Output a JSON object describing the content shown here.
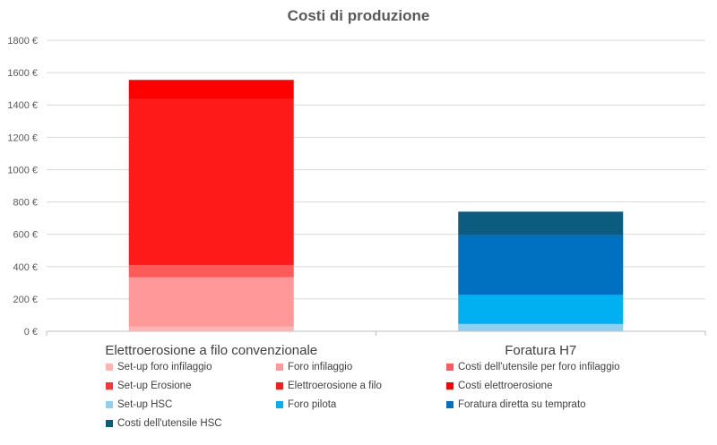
{
  "chart_data": {
    "type": "stacked-bar",
    "title": "Costi di produzione",
    "xlabel": "",
    "ylabel": "",
    "ylim": [
      0,
      1800
    ],
    "y_ticks": [
      "0 €",
      "200 €",
      "400 €",
      "600 €",
      "800 €",
      "1000 €",
      "1200 €",
      "1400 €",
      "1600 €",
      "1800 €"
    ],
    "y_tick_values": [
      0,
      200,
      400,
      600,
      800,
      1000,
      1200,
      1400,
      1600,
      1800
    ],
    "grid": true,
    "legend_position": "bottom",
    "categories": [
      "Elettroerosione a filo convenzionale",
      "Foratura H7"
    ],
    "series": [
      {
        "name": "Set-up foro infilaggio",
        "color": "#FFB3B3",
        "values": [
          30,
          0
        ]
      },
      {
        "name": "Foro infilaggio",
        "color": "#FF9999",
        "values": [
          305,
          0
        ]
      },
      {
        "name": "Costi dell'utensile per foro infilaggio",
        "color": "#FF5A5A",
        "values": [
          75,
          0
        ]
      },
      {
        "name": "Set-up Erosione",
        "color": "#FF3333",
        "values": [
          0,
          0
        ]
      },
      {
        "name": "Elettroerosione a filo",
        "color": "#FF1A1A",
        "values": [
          1030,
          0
        ]
      },
      {
        "name": "Costi elettroerosione",
        "color": "#FF0000",
        "values": [
          115,
          0
        ]
      },
      {
        "name": "Set-up HSC",
        "color": "#8FCFEF",
        "values": [
          0,
          45
        ]
      },
      {
        "name": "Foro pilota",
        "color": "#00B0F0",
        "values": [
          0,
          180
        ]
      },
      {
        "name": "Foratura diretta su temprato",
        "color": "#0070C0",
        "values": [
          0,
          370
        ]
      },
      {
        "name": "Costi dell'utensile HSC",
        "color": "#0B5C7E",
        "values": [
          0,
          145
        ]
      }
    ]
  }
}
